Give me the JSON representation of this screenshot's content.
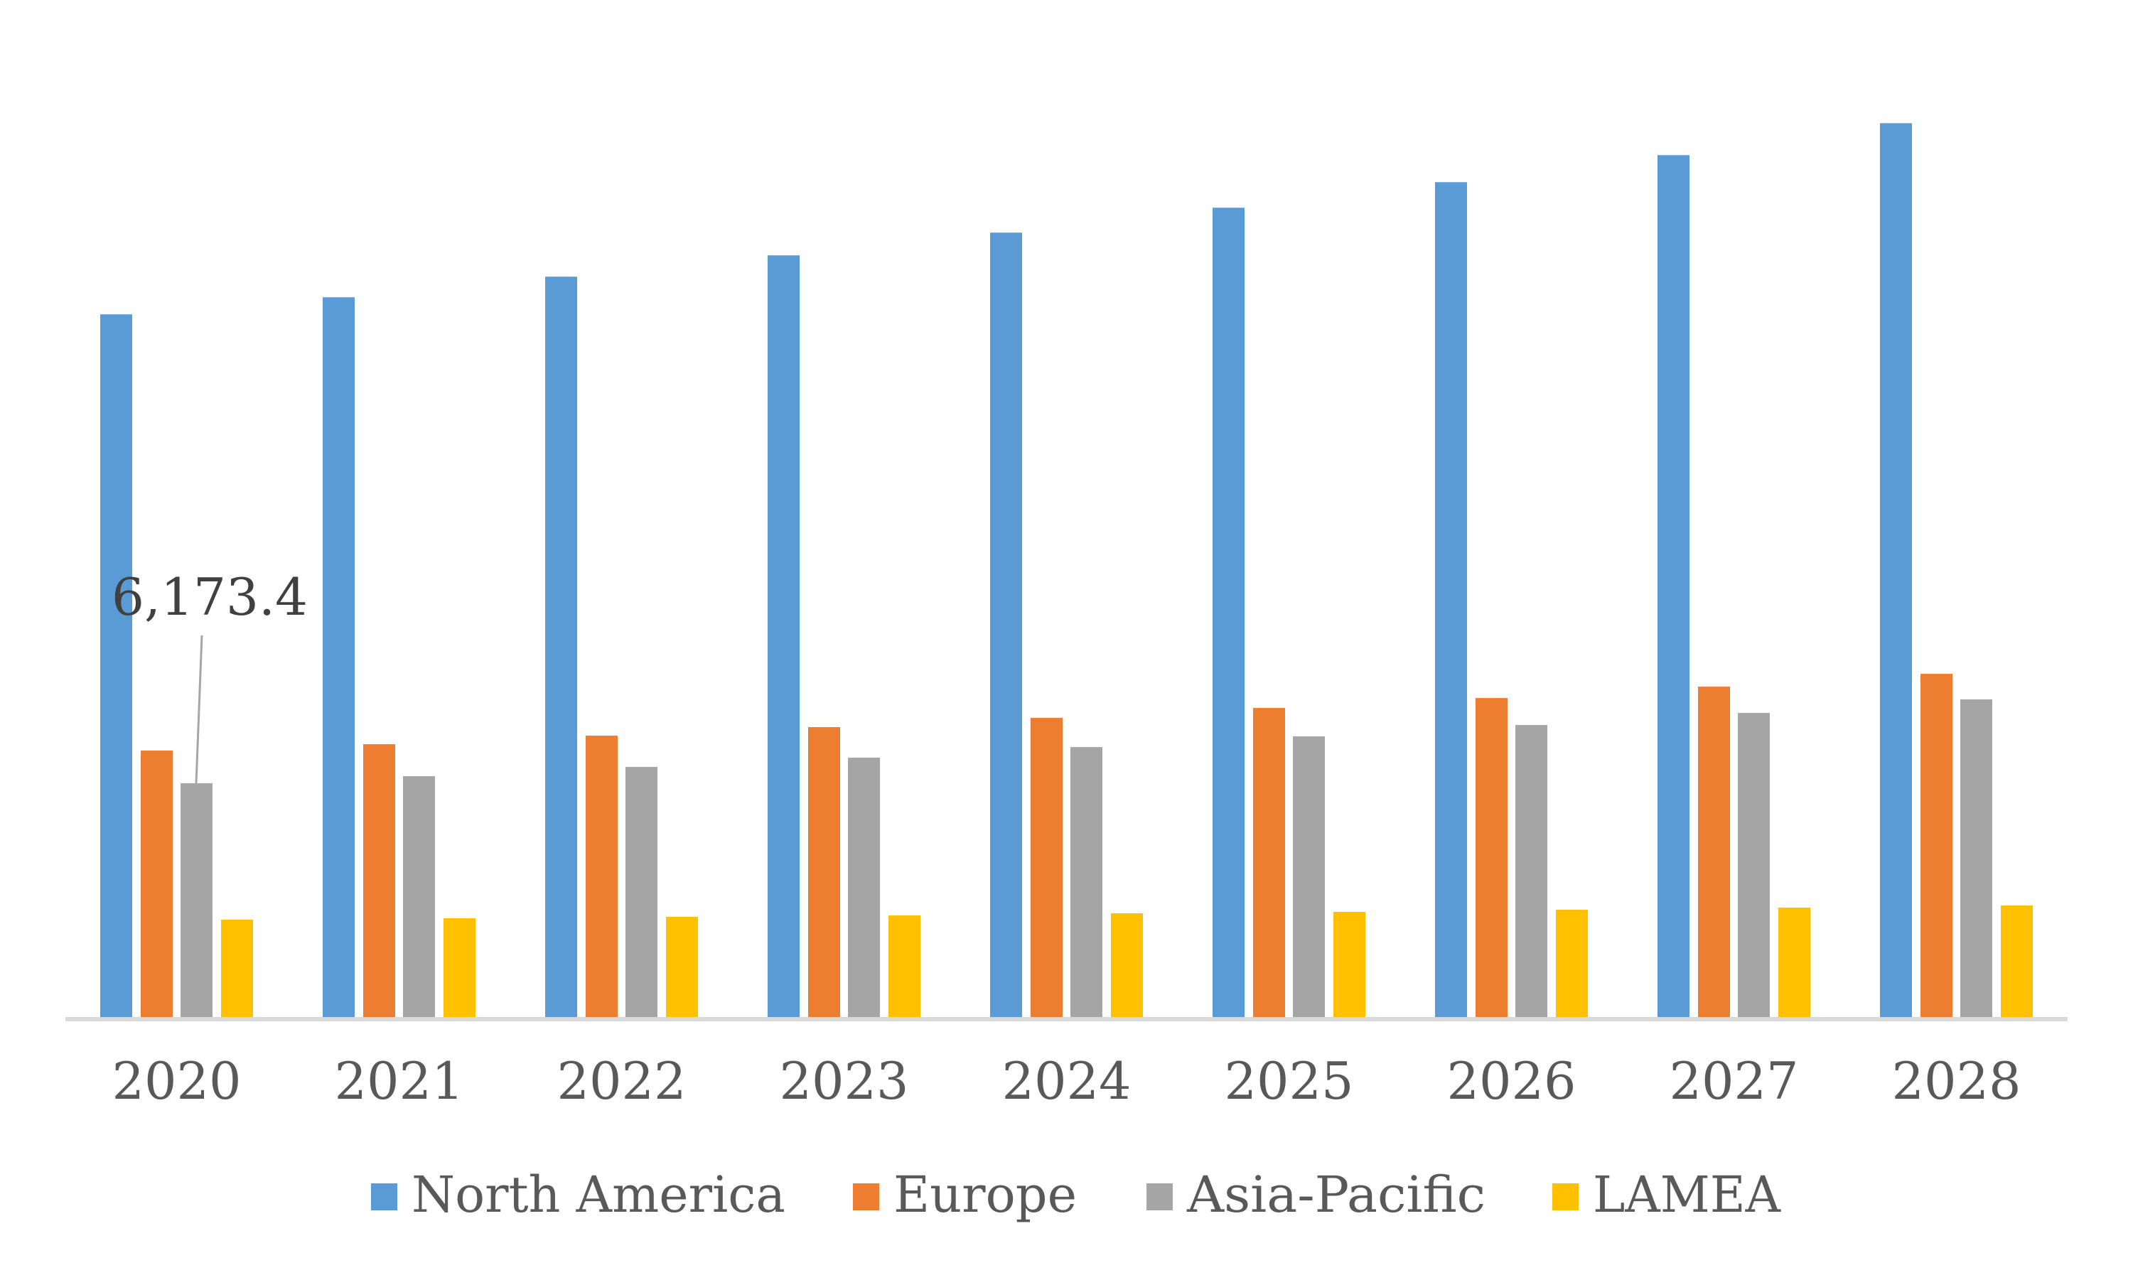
{
  "chart_data": {
    "type": "bar",
    "title": "",
    "xlabel": "",
    "ylabel": "",
    "ylim": [
      0,
      25000
    ],
    "grid": false,
    "legend_position": "bottom",
    "categories": [
      "2020",
      "2021",
      "2022",
      "2023",
      "2024",
      "2025",
      "2026",
      "2027",
      "2028"
    ],
    "series": [
      {
        "name": "North America",
        "color": "#5B9BD5",
        "values": [
          18558,
          19008,
          19552,
          20115,
          20715,
          21372,
          22048,
          22761,
          23605
        ]
      },
      {
        "name": "Europe",
        "color": "#ED7D31",
        "values": [
          7037,
          7205,
          7431,
          7656,
          7900,
          8162,
          8425,
          8725,
          9063
        ]
      },
      {
        "name": "Asia-Pacific",
        "color": "#A5A5A5",
        "values": [
          6173.4,
          6361,
          6605,
          6849,
          7130,
          7412,
          7712,
          8031,
          8388
        ]
      },
      {
        "name": "LAMEA",
        "color": "#FFC000",
        "values": [
          2571,
          2608,
          2646,
          2683,
          2740,
          2777,
          2833,
          2890,
          2946
        ]
      }
    ],
    "annotations": [
      {
        "series": "Asia-Pacific",
        "category": "2020",
        "text": "6,173.4"
      }
    ],
    "axis_color": "#D9D9D9",
    "text_color": "#595959",
    "annotation_color": "#404040",
    "leader_color": "#A6A6A6"
  }
}
